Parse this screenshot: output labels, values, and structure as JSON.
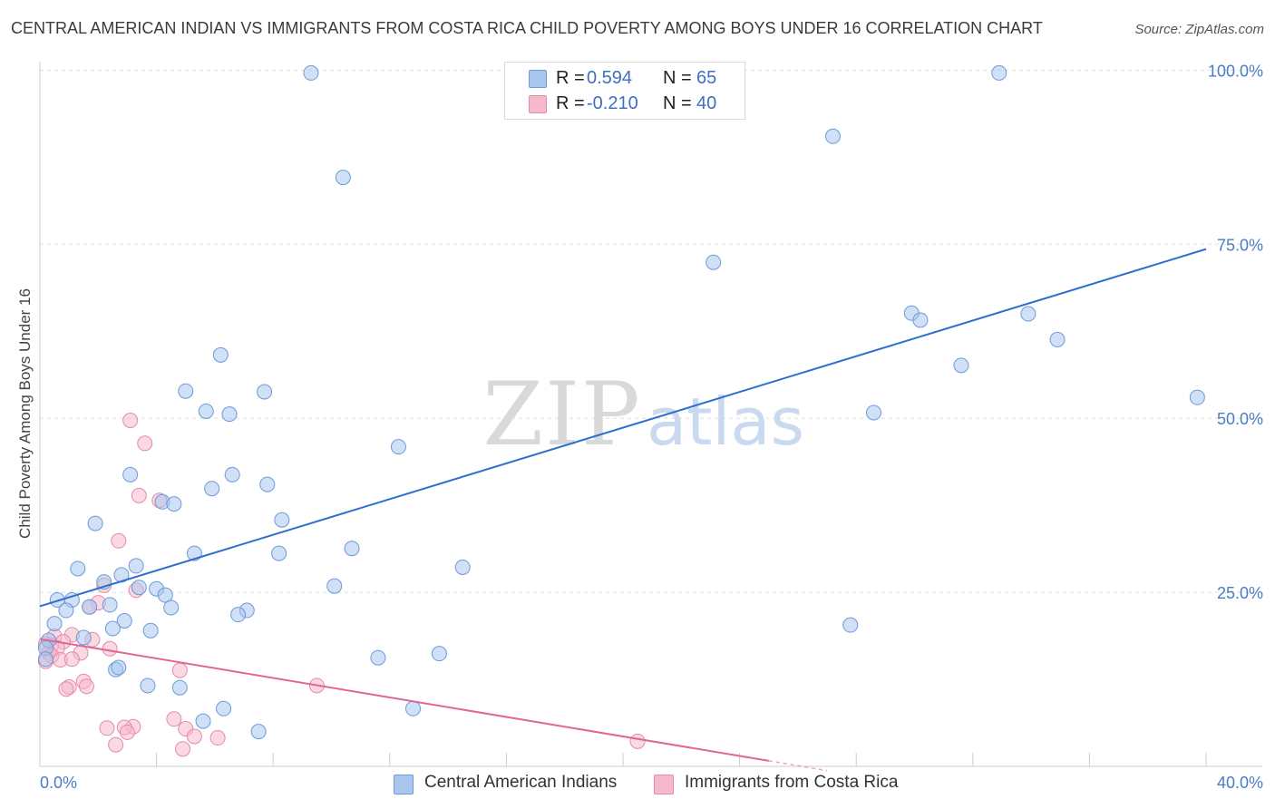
{
  "title": "CENTRAL AMERICAN INDIAN VS IMMIGRANTS FROM COSTA RICA CHILD POVERTY AMONG BOYS UNDER 16 CORRELATION CHART",
  "source": "Source: ZipAtlas.com",
  "watermark": {
    "zip": "ZIP",
    "atlas": "atlas"
  },
  "legend": {
    "series1": {
      "r_label": "R =",
      "r_value": "0.594",
      "n_label": "N =",
      "n_value": "65"
    },
    "series2": {
      "r_label": "R =",
      "r_value": "-0.210",
      "n_label": "N =",
      "n_value": "40"
    }
  },
  "colors": {
    "blue_fill": "#a9c6ee",
    "blue_stroke": "#6d9ad8",
    "blue_line": "#2f6fcc",
    "pink_fill": "#f6b9cc",
    "pink_stroke": "#e58aa8",
    "pink_line": "#e0669a",
    "tick_label": "#4a7cc4"
  },
  "chart_data": {
    "type": "scatter",
    "title": "CENTRAL AMERICAN INDIAN VS IMMIGRANTS FROM COSTA RICA CHILD POVERTY AMONG BOYS UNDER 16 CORRELATION CHART",
    "xlabel": "",
    "ylabel": "Child Poverty Among Boys Under 16",
    "xlim": [
      0,
      40
    ],
    "ylim": [
      0,
      102
    ],
    "x_tick_labels": [
      "0.0%",
      "40.0%"
    ],
    "y_ticks": [
      25,
      50,
      75,
      100
    ],
    "y_tick_labels": [
      "25.0%",
      "50.0%",
      "75.0%",
      "100.0%"
    ],
    "grid": true,
    "series": [
      {
        "name": "Central American Indians",
        "points": [
          [
            9.3,
            99.6
          ],
          [
            32.9,
            99.6
          ],
          [
            27.2,
            90.5
          ],
          [
            10.4,
            84.6
          ],
          [
            23.1,
            72.4
          ],
          [
            29.9,
            65.1
          ],
          [
            30.2,
            64.1
          ],
          [
            33.9,
            65.0
          ],
          [
            34.9,
            61.3
          ],
          [
            31.6,
            57.6
          ],
          [
            6.2,
            59.1
          ],
          [
            28.6,
            50.8
          ],
          [
            39.7,
            53.0
          ],
          [
            5.0,
            53.9
          ],
          [
            7.7,
            53.8
          ],
          [
            5.7,
            51.0
          ],
          [
            6.5,
            50.6
          ],
          [
            12.3,
            45.9
          ],
          [
            3.1,
            41.9
          ],
          [
            6.6,
            41.9
          ],
          [
            5.9,
            39.9
          ],
          [
            7.8,
            40.5
          ],
          [
            4.2,
            38.0
          ],
          [
            4.6,
            37.7
          ],
          [
            8.3,
            35.4
          ],
          [
            1.9,
            34.9
          ],
          [
            5.3,
            30.6
          ],
          [
            8.2,
            30.6
          ],
          [
            10.7,
            31.3
          ],
          [
            14.5,
            28.6
          ],
          [
            3.3,
            28.8
          ],
          [
            1.3,
            28.4
          ],
          [
            2.2,
            26.5
          ],
          [
            2.8,
            27.5
          ],
          [
            3.4,
            25.7
          ],
          [
            4.0,
            25.5
          ],
          [
            4.3,
            24.6
          ],
          [
            10.1,
            25.9
          ],
          [
            0.6,
            23.9
          ],
          [
            1.1,
            23.9
          ],
          [
            1.7,
            22.9
          ],
          [
            0.9,
            22.4
          ],
          [
            4.5,
            22.8
          ],
          [
            2.4,
            23.2
          ],
          [
            7.1,
            22.4
          ],
          [
            6.8,
            21.8
          ],
          [
            2.9,
            20.9
          ],
          [
            0.5,
            20.5
          ],
          [
            2.5,
            19.8
          ],
          [
            3.8,
            19.5
          ],
          [
            1.5,
            18.5
          ],
          [
            0.3,
            18.1
          ],
          [
            27.8,
            20.3
          ],
          [
            0.2,
            17.0
          ],
          [
            11.6,
            15.6
          ],
          [
            13.7,
            16.2
          ],
          [
            2.6,
            13.9
          ],
          [
            2.7,
            14.2
          ],
          [
            3.7,
            11.6
          ],
          [
            4.8,
            11.3
          ],
          [
            12.8,
            8.3
          ],
          [
            6.3,
            8.3
          ],
          [
            5.6,
            6.5
          ],
          [
            7.5,
            5.0
          ],
          [
            0.2,
            15.4
          ]
        ],
        "trend": {
          "x": [
            0,
            40
          ],
          "y": [
            23.0,
            74.3
          ]
        }
      },
      {
        "name": "Immigrants from Costa Rica",
        "points": [
          [
            3.1,
            49.7
          ],
          [
            3.6,
            46.4
          ],
          [
            3.4,
            38.9
          ],
          [
            4.1,
            38.2
          ],
          [
            2.7,
            32.4
          ],
          [
            2.2,
            26.0
          ],
          [
            3.3,
            25.3
          ],
          [
            2.0,
            23.5
          ],
          [
            1.7,
            22.9
          ],
          [
            1.1,
            18.9
          ],
          [
            0.5,
            18.7
          ],
          [
            0.8,
            17.9
          ],
          [
            0.2,
            17.6
          ],
          [
            0.4,
            17.4
          ],
          [
            0.6,
            17.0
          ],
          [
            2.4,
            16.9
          ],
          [
            0.3,
            16.3
          ],
          [
            1.4,
            16.3
          ],
          [
            0.4,
            15.9
          ],
          [
            0.7,
            15.3
          ],
          [
            0.2,
            15.1
          ],
          [
            1.1,
            15.4
          ],
          [
            4.8,
            13.8
          ],
          [
            1.5,
            12.2
          ],
          [
            1.0,
            11.4
          ],
          [
            1.6,
            11.5
          ],
          [
            9.5,
            11.6
          ],
          [
            0.9,
            11.1
          ],
          [
            4.6,
            6.8
          ],
          [
            5.0,
            5.4
          ],
          [
            2.3,
            5.5
          ],
          [
            3.2,
            5.7
          ],
          [
            2.9,
            5.6
          ],
          [
            3.0,
            4.9
          ],
          [
            5.3,
            4.3
          ],
          [
            6.1,
            4.1
          ],
          [
            2.6,
            3.1
          ],
          [
            4.9,
            2.5
          ],
          [
            20.5,
            3.6
          ],
          [
            1.8,
            18.2
          ]
        ],
        "trend": {
          "x": [
            0,
            25
          ],
          "y": [
            18.3,
            0.8
          ]
        }
      }
    ],
    "legend": [
      "Central American Indians",
      "Immigrants from Costa Rica"
    ]
  }
}
